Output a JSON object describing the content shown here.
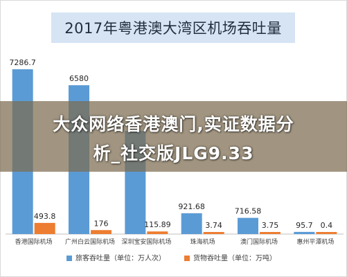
{
  "overlay": {
    "line1": "大众网络香港澳门,实证数据分",
    "line2": "析_社交版JLG9.33"
  },
  "colors": {
    "passenger": "#5b9bd5",
    "cargo": "#ed7d31",
    "title_bg": "#d6e4f4"
  },
  "chart_data": {
    "type": "bar",
    "title": "2017年粤港澳大湾区机场吞吐量",
    "categories": [
      "香港国际机场",
      "广州白云国际机场",
      "深圳宝安国际机场",
      "珠海机场",
      "澳门国际机场",
      "惠州平潭机场"
    ],
    "series": [
      {
        "name": "旅客吞吐量（单位：万人次）",
        "values": [
          7286.7,
          6580,
          4561,
          921.68,
          716.58,
          95.7
        ],
        "labels": [
          "7286.7",
          "6580",
          "",
          "921.68",
          "716.58",
          "95.7"
        ]
      },
      {
        "name": "货物吞吐量（单位：万吨）",
        "values": [
          493.8,
          176,
          115.89,
          3.74,
          3.75,
          0.4
        ],
        "labels": [
          "493.8",
          "176",
          "115.89",
          "3.74",
          "3.75",
          "0.4"
        ]
      }
    ],
    "legend_position": "bottom",
    "grid": false
  }
}
